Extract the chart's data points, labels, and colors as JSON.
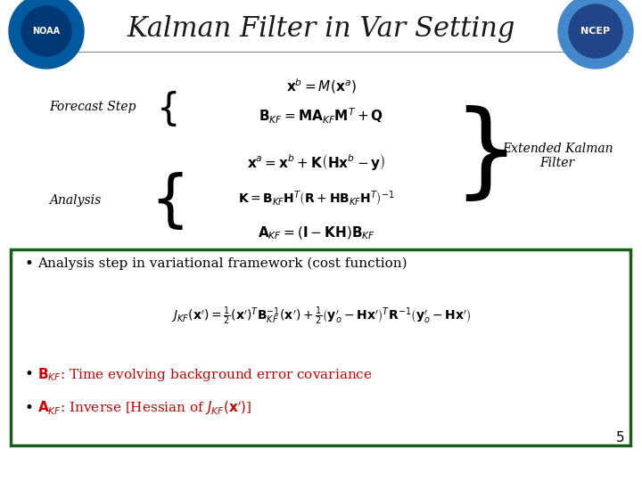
{
  "title": "Kalman Filter in Var Setting",
  "title_fontsize": 22,
  "background_color": "#ffffff",
  "title_color": "#1a1a1a",
  "forecast_label": "Forecast Step",
  "analysis_label": "Analysis",
  "extended_label": "Extended Kalman\nFilter",
  "bullet1": "Analysis step in variational framework (cost function)",
  "bullet2_text": ": Time evolving background error covariance",
  "bullet3_mid": ": Inverse [Hessian of ",
  "page_number": "5",
  "box_border_color": "#1a5c1a",
  "text_color_black": "#000000",
  "text_color_red": "#cc0000",
  "forecast_eq1": "$\\mathbf{x}^b = M\\left(\\mathbf{x}^a\\right)$",
  "forecast_eq2": "$\\mathbf{B}_{KF} = \\mathbf{MA}_{KF}\\mathbf{M}^T + \\mathbf{Q}$",
  "analysis_eq1": "$\\mathbf{x}^a = \\mathbf{x}^b + \\mathbf{K}\\left(\\mathbf{Hx}^b - \\mathbf{y}\\right)$",
  "analysis_eq2": "$\\mathbf{K} = \\mathbf{B}_{KF}\\mathbf{H}^T\\left(\\mathbf{R} + \\mathbf{HB}_{KF}\\mathbf{H}^T\\right)^{-1}$",
  "analysis_eq3": "$\\mathbf{A}_{KF} = \\left(\\mathbf{I} - \\mathbf{KH}\\right)\\mathbf{B}_{KF}$",
  "cost_eq": "$J_{KF}\\left(\\mathbf{x}^{\\prime}\\right) = \\frac{1}{2}\\left(\\mathbf{x}^{\\prime}\\right)^T\\mathbf{B}_{KF}^{-1}\\left(\\mathbf{x}^{\\prime}\\right) + \\frac{1}{2}\\left(\\mathbf{y}_o^{\\prime} - \\mathbf{Hx}^{\\prime}\\right)^T\\mathbf{R}^{-1}\\left(\\mathbf{y}_o^{\\prime} - \\mathbf{Hx}^{\\prime}\\right)$",
  "noaa_color1": "#0066cc",
  "noaa_color2": "#ffffff",
  "ncep_color": "#000080"
}
